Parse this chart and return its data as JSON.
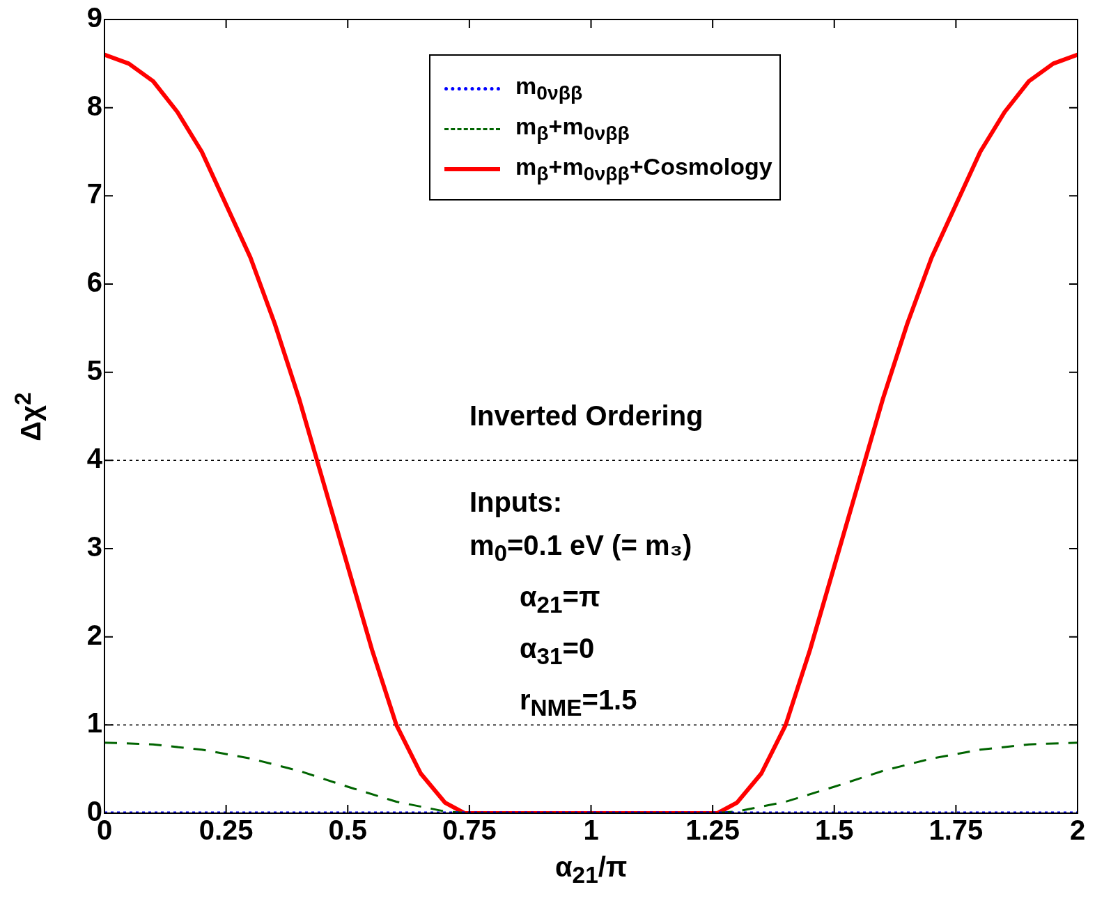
{
  "chart_data": {
    "type": "line",
    "xlabel": "α$_{21}$/π",
    "ylabel": "Δχ$^{2}$",
    "xlim": [
      0,
      2
    ],
    "xticks": [
      0,
      0.25,
      0.5,
      0.75,
      1,
      1.25,
      1.5,
      1.75,
      2
    ],
    "ylim": [
      0,
      9
    ],
    "yticks": [
      0,
      1,
      2,
      3,
      4,
      5,
      6,
      7,
      8,
      9
    ],
    "legend": "top",
    "series": [
      {
        "name": "m$_{0νββ}$",
        "color": "#0000ff",
        "line_style": "dotted",
        "x": [
          0,
          2
        ],
        "values": [
          0,
          0
        ]
      },
      {
        "name": "m$_{β}$+m$_{0νββ}$",
        "color": "#006400",
        "line_style": "dashed",
        "x": [
          0,
          0.1,
          0.2,
          0.3,
          0.4,
          0.5,
          0.6,
          0.7,
          0.75,
          1.25,
          1.3,
          1.4,
          1.5,
          1.6,
          1.7,
          1.8,
          1.9,
          2
        ],
        "values": [
          0.8,
          0.78,
          0.72,
          0.62,
          0.48,
          0.3,
          0.13,
          0.02,
          0,
          0,
          0.02,
          0.13,
          0.3,
          0.48,
          0.62,
          0.72,
          0.78,
          0.8
        ]
      },
      {
        "name": "m$_{β}$+m$_{0νββ}$+Cosmology",
        "color": "#ff0000",
        "line_style": "solid",
        "x": [
          0,
          0.05,
          0.1,
          0.15,
          0.2,
          0.25,
          0.3,
          0.35,
          0.4,
          0.45,
          0.5,
          0.55,
          0.6,
          0.65,
          0.7,
          0.74,
          1.26,
          1.3,
          1.35,
          1.4,
          1.45,
          1.5,
          1.55,
          1.6,
          1.65,
          1.7,
          1.75,
          1.8,
          1.85,
          1.9,
          1.95,
          2
        ],
        "values": [
          8.6,
          8.5,
          8.3,
          7.95,
          7.5,
          6.9,
          6.3,
          5.55,
          4.7,
          3.75,
          2.8,
          1.85,
          1,
          0.45,
          0.12,
          0,
          0,
          0.12,
          0.45,
          1,
          1.85,
          2.8,
          3.75,
          4.7,
          5.55,
          6.3,
          6.9,
          7.5,
          7.95,
          8.3,
          8.5,
          8.6
        ]
      }
    ],
    "ref_lines": [
      {
        "axis": "y",
        "value": 4,
        "color": "#000000",
        "line_style": "dotted"
      },
      {
        "axis": "y",
        "value": 1,
        "color": "#000000",
        "line_style": "dotted"
      }
    ],
    "annotations": [
      "Inverted Ordering",
      "Inputs:",
      "m$_{0}$=0.1 eV (= m₃)",
      "α$_{21}$=π",
      "α$_{31}$=0",
      "r$_{NME}$=1.5"
    ]
  }
}
